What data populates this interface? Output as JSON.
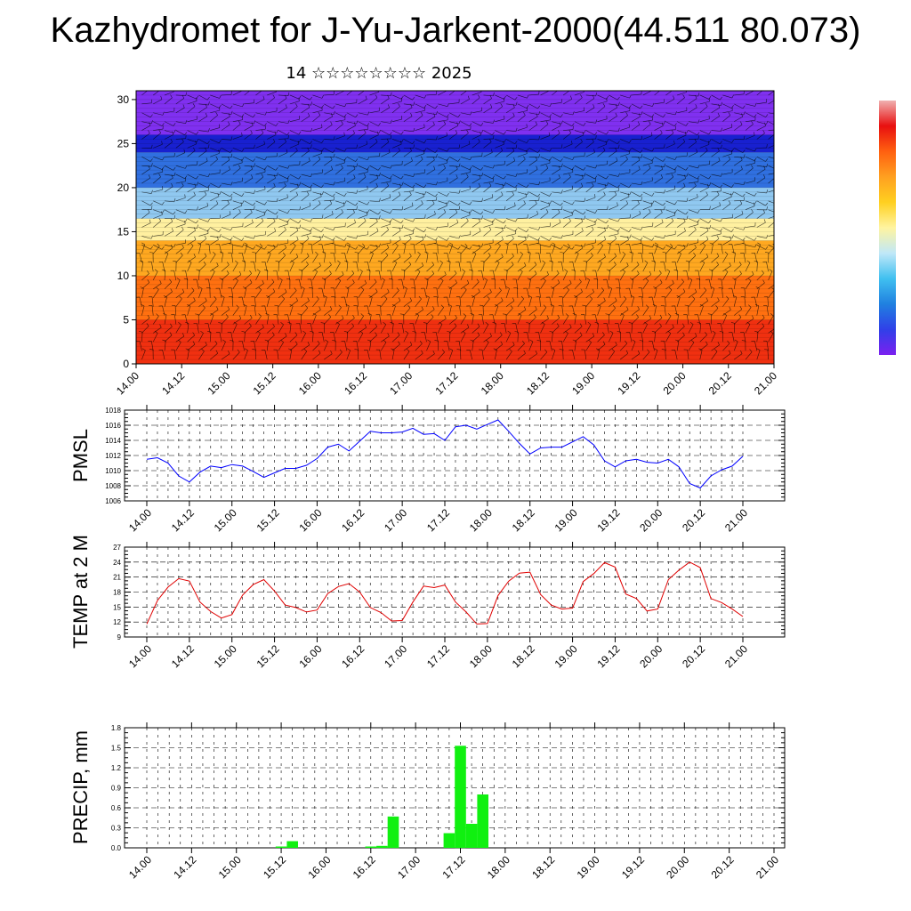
{
  "title": "Kazhydromet for J-Yu-Jarkent-2000(44.511 80.073)",
  "subtitle": "14 ☆☆☆☆☆☆☆☆ 2025",
  "colorbar_colors": [
    "#7b20f0",
    "#3040e8",
    "#2080e0",
    "#40c0f0",
    "#c0e8f8",
    "#fff4a0",
    "#ffd020",
    "#ffa020",
    "#ff6010",
    "#e81010",
    "#f0b0b0"
  ],
  "chart_data": [
    {
      "type": "heatmap",
      "title": "",
      "xlabel": "",
      "ylabel": "",
      "x_tick_labels": [
        "14.00",
        "14.12",
        "15.00",
        "15.12",
        "16.00",
        "16.12",
        "17.00",
        "17.12",
        "18.00",
        "18.12",
        "19.00",
        "19.12",
        "20.00",
        "20.12",
        "21.00"
      ],
      "y_tick_labels": [
        "0",
        "5",
        "10",
        "15",
        "20",
        "25",
        "30"
      ],
      "ylim": [
        0,
        31
      ],
      "color_bands": [
        {
          "from": 0,
          "to": 5,
          "color": "#f03010"
        },
        {
          "from": 5,
          "to": 10,
          "color": "#ff7010"
        },
        {
          "from": 10,
          "to": 14,
          "color": "#ffa820"
        },
        {
          "from": 14,
          "to": 16.5,
          "color": "#fff0a0"
        },
        {
          "from": 16.5,
          "to": 20,
          "color": "#90c8f0"
        },
        {
          "from": 20,
          "to": 24,
          "color": "#3070e0"
        },
        {
          "from": 24,
          "to": 26,
          "color": "#1820d0"
        },
        {
          "from": 26,
          "to": 31,
          "color": "#8030f0"
        }
      ]
    },
    {
      "type": "line",
      "ylabel": "PMSL",
      "ylim": [
        1006,
        1018
      ],
      "y_ticks": [
        "1006",
        "1008",
        "1010",
        "1012",
        "1014",
        "1016",
        "1018"
      ],
      "x_tick_labels": [
        "14.00",
        "14.12",
        "15.00",
        "15.12",
        "16.00",
        "16.12",
        "17.00",
        "17.12",
        "18.00",
        "18.12",
        "19.00",
        "19.12",
        "20.00",
        "20.12",
        "21.00"
      ],
      "line_color": "#0000ff",
      "series": [
        {
          "values": [
            1011.5,
            1011.7,
            1011.0,
            1009.3,
            1008.5,
            1009.8,
            1010.6,
            1010.4,
            1010.8,
            1010.6,
            1009.9,
            1009.1,
            1009.7,
            1010.3,
            1010.3,
            1010.7,
            1011.6,
            1013.1,
            1013.5,
            1012.6,
            1013.9,
            1015.2,
            1015.0,
            1015.0,
            1015.1,
            1015.6,
            1014.8,
            1014.9,
            1014.0,
            1015.8,
            1016.0,
            1015.5,
            1016.1,
            1016.7,
            1015.2,
            1013.6,
            1012.2,
            1013.0,
            1013.1,
            1013.1,
            1013.8,
            1014.5,
            1013.4,
            1011.3,
            1010.5,
            1011.3,
            1011.5,
            1011.1,
            1011.0,
            1011.5,
            1010.5,
            1008.3,
            1007.7,
            1009.3,
            1010.1,
            1010.6,
            1011.9
          ]
        }
      ]
    },
    {
      "type": "line",
      "ylabel": "TEMP at 2 M",
      "ylim": [
        9,
        27
      ],
      "y_ticks": [
        "9",
        "12",
        "15",
        "18",
        "21",
        "24",
        "27"
      ],
      "x_tick_labels": [
        "14.00",
        "14.12",
        "15.00",
        "15.12",
        "16.00",
        "16.12",
        "17.00",
        "17.12",
        "18.00",
        "18.12",
        "19.00",
        "19.12",
        "20.00",
        "20.12",
        "21.00"
      ],
      "line_color": "#e00000",
      "series": [
        {
          "values": [
            11.6,
            16.3,
            19.0,
            20.7,
            20.2,
            16.0,
            14.1,
            12.8,
            13.5,
            17.4,
            19.5,
            20.5,
            18.2,
            15.4,
            14.9,
            14.0,
            14.4,
            17.7,
            19.1,
            19.7,
            18.0,
            14.9,
            13.9,
            12.2,
            12.3,
            16.0,
            19.2,
            18.9,
            19.4,
            16.0,
            14.0,
            11.6,
            11.7,
            17.3,
            20.2,
            21.8,
            22.0,
            17.5,
            15.4,
            14.6,
            14.8,
            20.1,
            21.7,
            23.9,
            23.0,
            17.6,
            16.7,
            14.2,
            14.6,
            20.5,
            22.4,
            24.0,
            22.9,
            16.7,
            15.9,
            14.6,
            13.1
          ]
        }
      ]
    },
    {
      "type": "bar",
      "ylabel": "PRECIP, mm",
      "ylim": [
        0,
        1.8
      ],
      "y_ticks": [
        "0.0",
        "0.3",
        "0.6",
        "0.9",
        "1.2",
        "1.5",
        "1.8"
      ],
      "x_tick_labels": [
        "14.00",
        "14.12",
        "15.00",
        "15.12",
        "16.00",
        "16.12",
        "17.00",
        "17.12",
        "18.00",
        "18.12",
        "19.00",
        "19.12",
        "20.00",
        "20.12",
        "21.00"
      ],
      "bar_color": "#10f010",
      "values": [
        0,
        0,
        0,
        0,
        0,
        0,
        0,
        0,
        0,
        0,
        0,
        0,
        0.02,
        0.1,
        0,
        0,
        0,
        0,
        0,
        0,
        0.02,
        0.03,
        0.47,
        0,
        0,
        0,
        0,
        0.22,
        1.53,
        0.36,
        0.8,
        0,
        0,
        0,
        0,
        0,
        0,
        0,
        0,
        0,
        0,
        0,
        0,
        0,
        0,
        0,
        0,
        0,
        0,
        0,
        0,
        0,
        0,
        0,
        0,
        0,
        0
      ]
    }
  ]
}
